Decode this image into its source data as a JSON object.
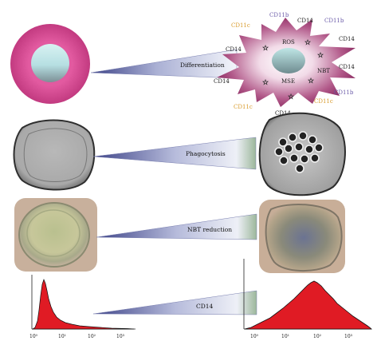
{
  "panels": {
    "differentiation": {
      "label": "Differentiation",
      "markers": [
        {
          "text": "CD11b",
          "color": "#6a5aa8"
        },
        {
          "text": "CD14",
          "color": "#1a1a1a"
        },
        {
          "text": "CD11b",
          "color": "#6a5aa8"
        },
        {
          "text": "CD11c",
          "color": "#d89a2a"
        },
        {
          "text": "CD14",
          "color": "#1a1a1a"
        },
        {
          "text": "ROS",
          "color": "#1a1a1a"
        },
        {
          "text": "CD14",
          "color": "#1a1a1a"
        },
        {
          "text": "NBT",
          "color": "#1a1a1a"
        },
        {
          "text": "CD14",
          "color": "#1a1a1a"
        },
        {
          "text": "MSE",
          "color": "#1a1a1a"
        },
        {
          "text": "CD14",
          "color": "#1a1a1a"
        },
        {
          "text": "CD11b",
          "color": "#6a5aa8"
        },
        {
          "text": "CD11c",
          "color": "#d89a2a"
        },
        {
          "text": "CD11c",
          "color": "#d89a2a"
        },
        {
          "text": "CD14",
          "color": "#1a1a1a"
        }
      ]
    },
    "phagocytosis": {
      "label": "Phagocytosis"
    },
    "nbt": {
      "label": "NBT reduction"
    },
    "cd14": {
      "label": "CD14",
      "axis_ticks_left": [
        "10⁰",
        "10¹",
        "10²",
        "10³"
      ],
      "axis_ticks_right": [
        "10⁰",
        "10¹",
        "10²",
        "10³"
      ]
    }
  },
  "colors": {
    "cell_ring": "#d8468f",
    "cell_core": "#b9e4e6",
    "star_cell": "#8c2a63",
    "wedge_dark": "#4a4f8e",
    "wedge_light": "#e9ecf5",
    "wedge_green": "#9db79a",
    "histogram": "#e01b24"
  }
}
